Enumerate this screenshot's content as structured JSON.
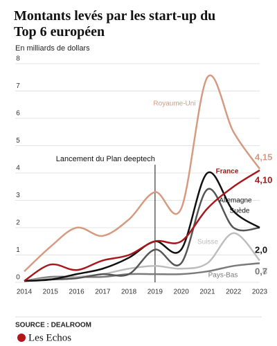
{
  "chart_data": {
    "type": "line",
    "title": "Montants levés par les start-up du Top 6 européen",
    "subtitle": "En milliards de dollars",
    "x": [
      2014,
      2015,
      2016,
      2017,
      2018,
      2019,
      2020,
      2021,
      2022,
      2023
    ],
    "xlim": [
      2014,
      2023
    ],
    "ylim": [
      0,
      8
    ],
    "yticks": [
      0,
      1,
      2,
      3,
      4,
      5,
      6,
      7,
      8
    ],
    "grid": true,
    "series": [
      {
        "name": "Royaume-Uni",
        "color": "#d69a80",
        "values": [
          0.4,
          1.3,
          2.0,
          1.7,
          2.3,
          3.3,
          2.7,
          7.5,
          5.5,
          4.15
        ],
        "value_labels": [
          null,
          null,
          null,
          null,
          null,
          null,
          null,
          null,
          null,
          "4,15"
        ]
      },
      {
        "name": "France",
        "color": "#a8171c",
        "values": [
          0.05,
          0.65,
          0.45,
          0.8,
          1.0,
          1.5,
          1.5,
          2.7,
          3.5,
          4.1
        ],
        "value_labels": [
          null,
          null,
          null,
          null,
          null,
          null,
          null,
          null,
          null,
          "4,10"
        ]
      },
      {
        "name": "Allemagne",
        "color": "#111111",
        "values": [
          0.05,
          0.1,
          0.3,
          0.5,
          0.9,
          1.5,
          1.2,
          4.0,
          2.6,
          2.0
        ]
      },
      {
        "name": "Suède",
        "color": "#555555",
        "values": [
          0.05,
          0.1,
          0.15,
          0.3,
          0.3,
          1.2,
          0.7,
          3.4,
          2.0,
          2.0
        ],
        "value_labels": [
          null,
          null,
          null,
          null,
          null,
          null,
          null,
          null,
          null,
          "2,0"
        ]
      },
      {
        "name": "Suisse",
        "color": "#bdbdbd",
        "values": [
          0.05,
          0.15,
          0.2,
          0.3,
          0.5,
          0.6,
          0.5,
          0.7,
          1.8,
          0.8
        ],
        "value_labels": [
          null,
          null,
          null,
          null,
          null,
          null,
          null,
          null,
          null,
          "0,8"
        ]
      },
      {
        "name": "Pays-Bas",
        "color": "#7a7a7a",
        "values": [
          0.05,
          0.2,
          0.2,
          0.2,
          0.3,
          0.3,
          0.3,
          0.4,
          0.6,
          0.7
        ],
        "value_labels": [
          null,
          null,
          null,
          null,
          null,
          null,
          null,
          null,
          null,
          "0,7"
        ]
      }
    ],
    "annotations": [
      {
        "text": "Lancement du Plan deeptech",
        "x": 2019
      }
    ],
    "source": "SOURCE : DEALROOM",
    "logo": "Les Echos"
  }
}
